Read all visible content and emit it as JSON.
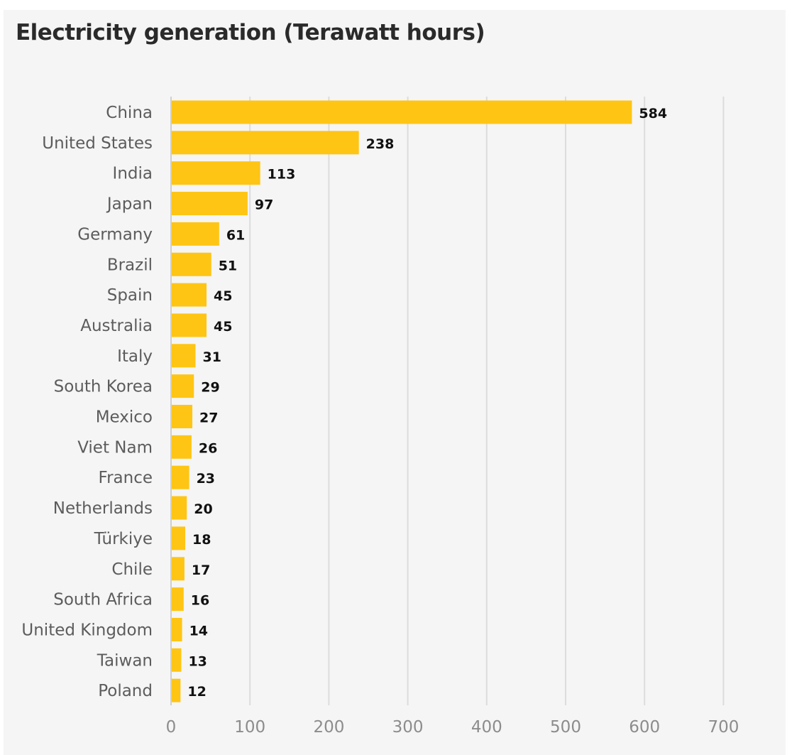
{
  "chart_data": {
    "type": "bar",
    "orientation": "horizontal",
    "title": "Electricity generation (Terawatt hours)",
    "xlabel": "",
    "ylabel": "",
    "categories": [
      "China",
      "United States",
      "India",
      "Japan",
      "Germany",
      "Brazil",
      "Spain",
      "Australia",
      "Italy",
      "South Korea",
      "Mexico",
      "Viet Nam",
      "France",
      "Netherlands",
      "Türkiye",
      "Chile",
      "South Africa",
      "United Kingdom",
      "Taiwan",
      "Poland"
    ],
    "values": [
      584,
      238,
      113,
      97,
      61,
      51,
      45,
      45,
      31,
      29,
      27,
      26,
      23,
      20,
      18,
      17,
      16,
      14,
      13,
      12
    ],
    "xlim": [
      0,
      700
    ],
    "xticks": [
      0,
      100,
      200,
      300,
      400,
      500,
      600,
      700
    ],
    "grid": true,
    "data_labels": true,
    "colors": {
      "bar": "#fec514",
      "background": "#f5f5f5",
      "gridline": "#dcdcdc"
    }
  }
}
